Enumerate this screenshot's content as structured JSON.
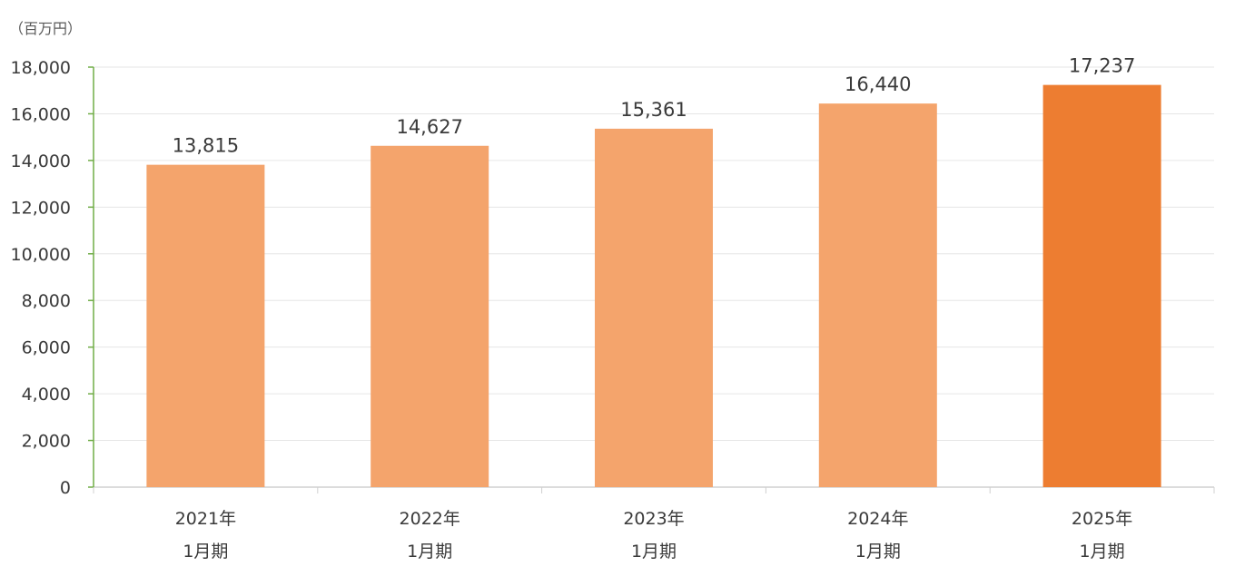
{
  "chart_data": {
    "type": "bar",
    "unit_label": "（百万円）",
    "categories": [
      [
        "2021年",
        "1月期"
      ],
      [
        "2022年",
        "1月期"
      ],
      [
        "2023年",
        "1月期"
      ],
      [
        "2024年",
        "1月期"
      ],
      [
        "2025年",
        "1月期"
      ]
    ],
    "values": [
      13815,
      14627,
      15361,
      16440,
      17237
    ],
    "value_labels": [
      "13,815",
      "14,627",
      "15,361",
      "16,440",
      "17,237"
    ],
    "ylim": [
      0,
      18000
    ],
    "yticks": [
      0,
      2000,
      4000,
      6000,
      8000,
      10000,
      12000,
      14000,
      16000,
      18000
    ],
    "ytick_labels": [
      "0",
      "2,000",
      "4,000",
      "6,000",
      "8,000",
      "10,000",
      "12,000",
      "14,000",
      "16,000",
      "18,000"
    ],
    "grid": true,
    "colors": {
      "bar": "#F4A46C",
      "bar_highlight": "#ED7D31",
      "grid": "#e6e6e6",
      "y_axis": "#70AD47",
      "x_axis": "#d0d0d0"
    },
    "highlight_index": 4
  }
}
